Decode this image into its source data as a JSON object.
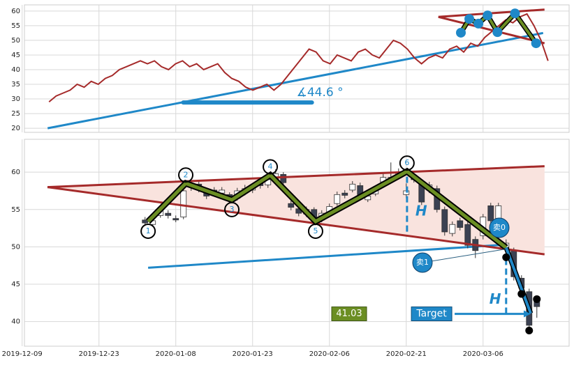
{
  "chart_data": [
    {
      "type": "line",
      "color": "#a52a2a",
      "x": [
        0,
        1,
        2,
        3,
        4,
        5,
        6,
        7,
        8,
        9,
        10,
        11,
        12,
        13,
        14,
        15,
        16,
        17,
        18,
        19,
        20,
        21,
        22,
        23,
        24,
        25,
        26,
        27,
        28,
        29,
        30,
        31,
        32,
        33,
        34,
        35,
        36,
        37,
        38,
        39,
        40,
        41,
        42,
        43,
        44,
        45,
        46,
        47,
        48,
        49,
        50,
        51,
        52,
        53,
        54,
        55,
        56,
        57,
        58,
        59,
        60,
        61,
        62,
        63,
        64,
        65,
        66,
        67,
        68,
        69,
        70,
        71
      ],
      "values": [
        29,
        31,
        32,
        33,
        35,
        34,
        36,
        35,
        37,
        38,
        40,
        41,
        42,
        43,
        42,
        43,
        41,
        40,
        42,
        43,
        41,
        42,
        40,
        41,
        42,
        39,
        37,
        36,
        34,
        33,
        34,
        35,
        33,
        35,
        38,
        41,
        44,
        47,
        46,
        43,
        42,
        45,
        44,
        43,
        46,
        47,
        45,
        44,
        47,
        50,
        49,
        47,
        44,
        42,
        44,
        45,
        44,
        47,
        48,
        46,
        49,
        48,
        51,
        53,
        55,
        57,
        56,
        58,
        59,
        55,
        50,
        43
      ],
      "xlim": [
        -3.5,
        74
      ],
      "ylim": [
        18.6,
        62.1
      ],
      "yticks": [
        20,
        25,
        30,
        35,
        40,
        45,
        50,
        55,
        60
      ],
      "grid": true,
      "trend_line": {
        "color": "#1f88c8",
        "x": [
          -0.2,
          70.3
        ],
        "y": [
          20,
          52.5
        ]
      },
      "boundary_lines": {
        "color": "#a52a2a",
        "x": [
          55.4,
          70.5,
          70.5
        ],
        "y": [
          58,
          60.5,
          49
        ]
      },
      "pattern": {
        "color": "#6b8e23",
        "dot_color": "#1f88c8",
        "x": [
          58.6,
          59.8,
          61.1,
          62.4,
          63.8,
          66.3,
          69.3
        ],
        "y": [
          52.6,
          57.3,
          55.7,
          58.5,
          52.8,
          59.2,
          49
        ]
      },
      "angle": {
        "label": "∡44.6 °",
        "color": "#1f88c8",
        "x": [
          19.1,
          37.4
        ],
        "y": 28.8
      }
    },
    {
      "type": "candlestick",
      "x": [
        16,
        17,
        18,
        19,
        20,
        21,
        22,
        23,
        24,
        25,
        26,
        27,
        28,
        29,
        30,
        31,
        32,
        33,
        34,
        35,
        36,
        37,
        38,
        39,
        40,
        41,
        42,
        43,
        44,
        45,
        46,
        47,
        48,
        49,
        50,
        51,
        52,
        53,
        54,
        55,
        56,
        57,
        58,
        59,
        60,
        61,
        62,
        63,
        64,
        65,
        66,
        67
      ],
      "open": [
        53.6,
        53.0,
        54.2,
        54.5,
        53.8,
        54.0,
        58.0,
        58.4,
        57.3,
        57.6,
        57.2,
        57.0,
        56.5,
        57.2,
        57.6,
        58.5,
        58.3,
        58.9,
        59.7,
        55.8,
        55.1,
        54.4,
        55.0,
        53.6,
        54.6,
        55.8,
        57.2,
        57.6,
        58.2,
        56.3,
        57.1,
        58.7,
        58.9,
        59.4,
        57.0,
        59.2,
        58.5,
        57.6,
        57.8,
        55.0,
        51.8,
        53.5,
        53.0,
        51.0,
        51.5,
        55.5,
        53.8,
        49.8,
        49.5,
        45.8,
        44.0,
        43.0
      ],
      "high": [
        54.0,
        53.9,
        55.2,
        54.9,
        54.2,
        58.0,
        58.7,
        58.8,
        57.7,
        58.0,
        58.0,
        57.3,
        57.9,
        58.3,
        58.5,
        59.1,
        59.6,
        60.4,
        60.0,
        56.2,
        55.5,
        55.4,
        55.3,
        54.9,
        55.8,
        57.4,
        57.6,
        58.8,
        58.6,
        57.2,
        58.2,
        59.8,
        61.3,
        60.5,
        58.5,
        59.8,
        58.9,
        58.7,
        58.2,
        55.4,
        53.4,
        53.9,
        53.4,
        51.4,
        54.4,
        55.9,
        55.9,
        51.0,
        49.9,
        46.2,
        44.4,
        43.4
      ],
      "low": [
        52.8,
        52.7,
        53.9,
        53.8,
        53.3,
        53.7,
        57.5,
        57.3,
        56.4,
        56.8,
        56.9,
        55.9,
        56.2,
        56.9,
        57.2,
        57.8,
        57.9,
        58.5,
        58.2,
        54.9,
        54.1,
        54.0,
        53.2,
        53.3,
        54.3,
        55.5,
        56.5,
        57.3,
        56.6,
        56.0,
        56.8,
        58.4,
        58.6,
        59.0,
        56.5,
        58.6,
        55.6,
        57.2,
        54.6,
        51.5,
        51.4,
        52.2,
        49.8,
        48.5,
        51.0,
        52.0,
        53.4,
        49.0,
        45.5,
        44.0,
        39.2,
        40.5
      ],
      "close": [
        53.2,
        53.5,
        54.8,
        54.2,
        53.6,
        57.5,
        58.3,
        57.8,
        56.8,
        57.2,
        57.6,
        56.3,
        57.5,
        57.8,
        58.0,
        58.2,
        59.0,
        59.8,
        58.6,
        55.3,
        54.5,
        55.0,
        53.6,
        54.5,
        55.4,
        57.0,
        56.9,
        58.4,
        57.0,
        56.8,
        57.8,
        59.3,
        59.3,
        59.9,
        57.5,
        59.0,
        56.0,
        58.3,
        55.0,
        52.0,
        53.0,
        52.6,
        50.2,
        49.5,
        54.0,
        53.5,
        55.5,
        50.5,
        46.0,
        44.5,
        39.5,
        42.0
      ],
      "up_color": "#ffffff",
      "down_color": "#3b4152",
      "xlim": [
        0.3,
        71.2
      ],
      "ylim": [
        36.7,
        64.4
      ],
      "yticks": [
        40,
        45,
        50,
        55,
        60
      ],
      "grid": true,
      "xticks": [
        {
          "value": 0,
          "label": "2019-12-09"
        },
        {
          "value": 10,
          "label": "2019-12-23"
        },
        {
          "value": 20,
          "label": "2020-01-08"
        },
        {
          "value": 30,
          "label": "2020-01-23"
        },
        {
          "value": 40,
          "label": "2020-02-06"
        },
        {
          "value": 50,
          "label": "2020-02-21"
        },
        {
          "value": 60,
          "label": "2020-03-06"
        }
      ],
      "triangle": {
        "color": "#a52a2a",
        "fill": "#f9e3de",
        "x": [
          3.3,
          68,
          68
        ],
        "y": [
          58,
          60.8,
          49
        ]
      },
      "trend_line": {
        "color": "#1f88c8",
        "x": [
          16.4,
          63
        ],
        "y": [
          47.2,
          50.3
        ]
      },
      "pattern": {
        "color": "#6b8e23",
        "x": [
          16.4,
          21.3,
          27.3,
          32.3,
          38.2,
          50.1,
          63
        ],
        "y": [
          53.4,
          58.5,
          56.3,
          59.6,
          53.4,
          60.1,
          49.9
        ],
        "labels": [
          "1",
          "2",
          "3",
          "4",
          "5",
          "6"
        ]
      },
      "breakout": {
        "color": "#1f88c8",
        "x": [
          63,
          66.2
        ],
        "y": [
          49.9,
          41.1
        ]
      },
      "h_markers": [
        {
          "label": "H",
          "x": 50.1,
          "y": [
            59.4,
            51.9
          ]
        },
        {
          "label": "H",
          "x": 63,
          "y": [
            48.4,
            41.1
          ]
        }
      ],
      "points": {
        "color": "#000000",
        "x": [
          63,
          65,
          66,
          67
        ],
        "y": [
          48.6,
          43.7,
          38.8,
          43.0
        ]
      },
      "target": {
        "label": "Target",
        "value": 41.03,
        "x": [
          56.3,
          66.2
        ]
      },
      "sells": [
        "卖0",
        "卖1"
      ]
    }
  ]
}
